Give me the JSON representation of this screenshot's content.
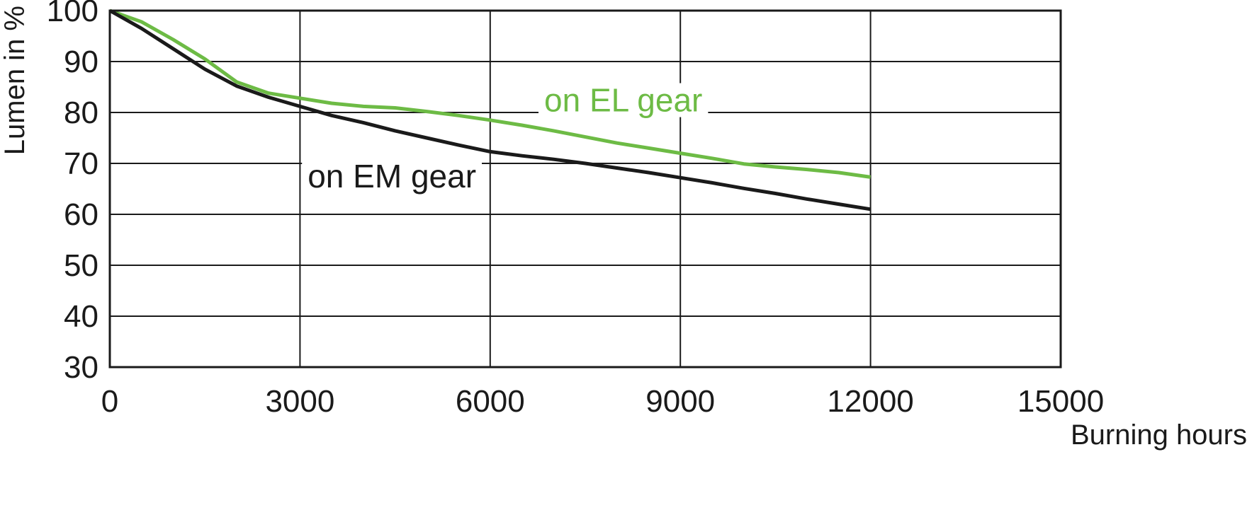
{
  "chart_data": {
    "type": "line",
    "title": "",
    "xlabel": "Burning hours",
    "ylabel": "Lumen in %",
    "xlim": [
      0,
      15000
    ],
    "ylim": [
      30,
      100
    ],
    "xticks": [
      0,
      3000,
      6000,
      9000,
      12000,
      15000
    ],
    "yticks": [
      30,
      40,
      50,
      60,
      70,
      80,
      90,
      100
    ],
    "xtick_labels": [
      "0",
      "3000",
      "6000",
      "9000",
      "12000",
      "15000"
    ],
    "ytick_labels": [
      "30",
      "40",
      "50",
      "60",
      "70",
      "80",
      "90",
      "100"
    ],
    "grid": true,
    "legend": "none",
    "series": [
      {
        "name": "on EL gear",
        "color": "#6dbb45",
        "x": [
          0,
          500,
          1000,
          1500,
          2000,
          2500,
          3000,
          3500,
          4000,
          4500,
          5000,
          5500,
          6000,
          6500,
          7000,
          7500,
          8000,
          8500,
          9000,
          9500,
          10000,
          10500,
          11000,
          11500,
          12000
        ],
        "y": [
          100,
          97.8,
          94.3,
          90.5,
          86,
          83.8,
          82.8,
          81.8,
          81.2,
          80.9,
          80.2,
          79.4,
          78.5,
          77.5,
          76.4,
          75.2,
          74,
          73,
          72,
          71,
          69.9,
          69.3,
          68.8,
          68.2,
          67.3
        ]
      },
      {
        "name": "on EM gear",
        "color": "#1a1a1a",
        "x": [
          0,
          500,
          1000,
          1500,
          2000,
          2500,
          3000,
          3500,
          4000,
          4500,
          5000,
          5500,
          6000,
          6500,
          7000,
          7500,
          8000,
          8500,
          9000,
          9500,
          10000,
          10500,
          11000,
          11500,
          12000
        ],
        "y": [
          100,
          96.5,
          92.5,
          88.5,
          85.2,
          83,
          81.2,
          79.4,
          78,
          76.4,
          75,
          73.6,
          72.3,
          71.5,
          70.8,
          70,
          69.1,
          68.2,
          67.2,
          66.2,
          65.1,
          64.1,
          63,
          62,
          61
        ]
      }
    ],
    "annotations": [
      {
        "text": "on EL gear",
        "x": 8100,
        "y": 80.2,
        "color": "#6dbb45"
      },
      {
        "text": "on EM gear",
        "x": 4450,
        "y": 65.3,
        "color": "#1a1a1a"
      }
    ]
  }
}
